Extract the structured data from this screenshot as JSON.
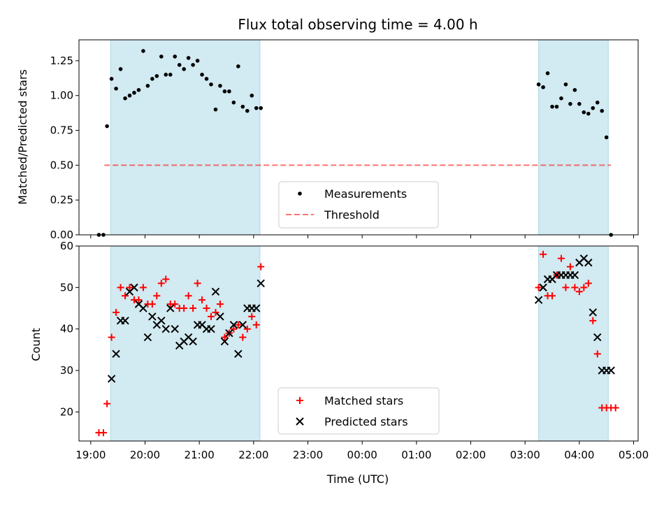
{
  "title": "Flux total observing time = 4.00 h",
  "colors": {
    "band": "#add8e6",
    "threshold": "#ff0000",
    "measurement": "#000000",
    "matched": "#ff0000",
    "predicted": "#000000"
  },
  "chart_data": [
    {
      "type": "scatter",
      "ylabel": "Matched/Predicted stars",
      "ylim": [
        0,
        1.4
      ],
      "yticks": [
        "0.00",
        "0.25",
        "0.50",
        "0.75",
        "1.00",
        "1.25"
      ],
      "ytick_values": [
        0,
        0.25,
        0.5,
        0.75,
        1.0,
        1.25
      ],
      "observing_windows": [
        [
          "19:22",
          "22:07"
        ],
        [
          "03:15",
          "04:32"
        ]
      ],
      "threshold": {
        "y": 0.5,
        "x_from": "19:15",
        "x_to": "04:35"
      },
      "legend": {
        "placement": "lower-center",
        "entries": [
          "Measurements",
          "Threshold"
        ]
      },
      "series": [
        {
          "name": "Measurements",
          "x": [
            "19:09",
            "19:14",
            "19:18",
            "19:23",
            "19:28",
            "19:33",
            "19:38",
            "19:43",
            "19:48",
            "19:53",
            "19:58",
            "20:03",
            "20:08",
            "20:13",
            "20:18",
            "20:23",
            "20:28",
            "20:33",
            "20:38",
            "20:43",
            "20:48",
            "20:53",
            "20:58",
            "21:03",
            "21:08",
            "21:13",
            "21:18",
            "21:23",
            "21:28",
            "21:33",
            "21:38",
            "21:43",
            "21:48",
            "21:53",
            "21:58",
            "22:03",
            "22:08",
            "03:15",
            "03:20",
            "03:25",
            "03:30",
            "03:35",
            "03:40",
            "03:45",
            "03:50",
            "03:55",
            "04:00",
            "04:05",
            "04:10",
            "04:15",
            "04:20",
            "04:25",
            "04:30",
            "04:35"
          ],
          "y": [
            0.0,
            0.0,
            0.78,
            1.12,
            1.05,
            1.19,
            0.98,
            1.0,
            1.02,
            1.04,
            1.32,
            1.07,
            1.12,
            1.14,
            1.28,
            1.15,
            1.15,
            1.28,
            1.22,
            1.19,
            1.27,
            1.22,
            1.25,
            1.15,
            1.12,
            1.08,
            0.9,
            1.07,
            1.03,
            1.03,
            0.95,
            1.21,
            0.92,
            0.89,
            1.0,
            0.91,
            0.91,
            1.08,
            1.06,
            1.16,
            0.92,
            0.92,
            0.98,
            1.08,
            0.94,
            1.04,
            0.94,
            0.88,
            0.87,
            0.91,
            0.95,
            0.89,
            0.7,
            0.0
          ]
        }
      ]
    },
    {
      "type": "scatter",
      "xlabel": "Time (UTC)",
      "ylabel": "Count",
      "ylim": [
        13,
        60
      ],
      "yticks": [
        "20",
        "30",
        "40",
        "50",
        "60"
      ],
      "ytick_values": [
        20,
        30,
        40,
        50,
        60
      ],
      "xticks": [
        "19:00",
        "20:00",
        "21:00",
        "22:00",
        "23:00",
        "00:00",
        "01:00",
        "02:00",
        "03:00",
        "04:00",
        "05:00"
      ],
      "xlim": [
        "18:47",
        "05:05"
      ],
      "observing_windows": [
        [
          "19:22",
          "22:07"
        ],
        [
          "03:15",
          "04:32"
        ]
      ],
      "legend": {
        "placement": "lower-center",
        "entries": [
          "Matched stars",
          "Predicted stars"
        ]
      },
      "series": [
        {
          "name": "Matched stars",
          "x": [
            "19:09",
            "19:14",
            "19:18",
            "19:23",
            "19:28",
            "19:33",
            "19:38",
            "19:43",
            "19:48",
            "19:53",
            "19:58",
            "20:03",
            "20:08",
            "20:13",
            "20:18",
            "20:23",
            "20:28",
            "20:33",
            "20:38",
            "20:43",
            "20:48",
            "20:53",
            "20:58",
            "21:03",
            "21:08",
            "21:13",
            "21:18",
            "21:23",
            "21:28",
            "21:33",
            "21:38",
            "21:43",
            "21:48",
            "21:53",
            "21:58",
            "22:03",
            "22:08",
            "03:15",
            "03:20",
            "03:25",
            "03:30",
            "03:35",
            "03:40",
            "03:45",
            "03:50",
            "03:55",
            "04:00",
            "04:05",
            "04:10",
            "04:15",
            "04:20",
            "04:25",
            "04:30",
            "04:35",
            "04:40"
          ],
          "y": [
            15,
            15,
            22,
            38,
            44,
            50,
            48,
            50,
            47,
            47,
            50,
            46,
            46,
            48,
            51,
            52,
            46,
            46,
            45,
            45,
            48,
            45,
            51,
            47,
            45,
            43,
            44,
            46,
            38,
            39,
            40,
            41,
            38,
            40,
            43,
            41,
            55,
            50,
            58,
            48,
            48,
            53,
            57,
            50,
            55,
            50,
            49,
            50,
            51,
            42,
            34,
            21,
            21,
            21,
            21
          ]
        },
        {
          "name": "Predicted stars",
          "x": [
            "19:23",
            "19:28",
            "19:33",
            "19:38",
            "19:43",
            "19:48",
            "19:53",
            "19:58",
            "20:03",
            "20:08",
            "20:13",
            "20:18",
            "20:23",
            "20:28",
            "20:33",
            "20:38",
            "20:43",
            "20:48",
            "20:53",
            "20:58",
            "21:03",
            "21:08",
            "21:13",
            "21:18",
            "21:23",
            "21:28",
            "21:33",
            "21:38",
            "21:43",
            "21:48",
            "21:53",
            "21:58",
            "22:03",
            "22:08",
            "03:15",
            "03:20",
            "03:25",
            "03:30",
            "03:35",
            "03:40",
            "03:45",
            "03:50",
            "03:55",
            "04:00",
            "04:05",
            "04:10",
            "04:15",
            "04:20",
            "04:25",
            "04:30",
            "04:35"
          ],
          "y": [
            28,
            34,
            42,
            42,
            49,
            50,
            46,
            45,
            38,
            43,
            41,
            42,
            40,
            45,
            40,
            36,
            37,
            38,
            37,
            41,
            41,
            40,
            40,
            49,
            43,
            37,
            39,
            41,
            34,
            41,
            45,
            45,
            45,
            51,
            47,
            50,
            52,
            52,
            53,
            53,
            53,
            53,
            53,
            56,
            57,
            56,
            44,
            38,
            30,
            30,
            30
          ]
        }
      ]
    }
  ]
}
